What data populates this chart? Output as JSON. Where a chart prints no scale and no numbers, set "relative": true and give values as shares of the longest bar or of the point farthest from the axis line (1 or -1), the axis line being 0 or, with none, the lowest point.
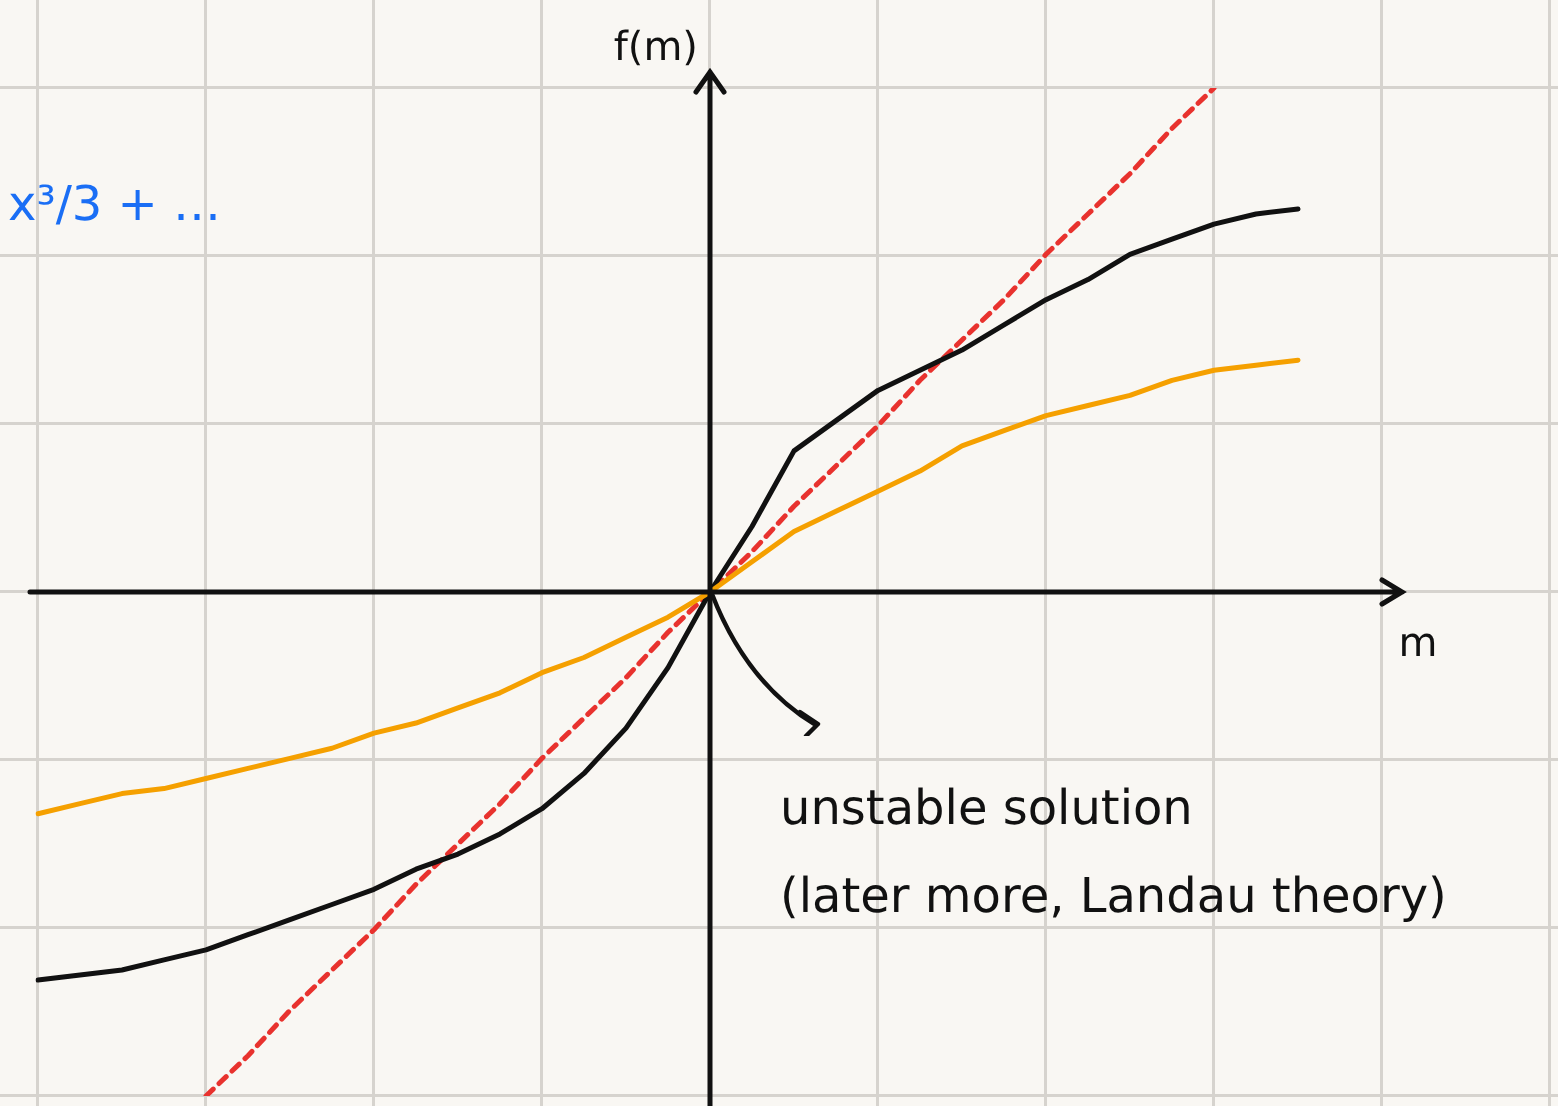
{
  "chart_data": {
    "type": "line",
    "relative": true,
    "xlabel": "m",
    "ylabel": "f(m)",
    "categories": [
      null,
      null,
      null,
      null,
      null,
      null,
      null,
      null,
      null,
      null,
      null,
      null,
      null,
      null,
      null,
      null,
      null,
      null,
      null,
      null,
      null,
      null,
      null,
      null,
      null,
      null,
      null,
      null,
      null,
      null,
      null,
      null,
      null
    ],
    "series": [
      {
        "color": "#f5a000",
        "values": [
          -0.44,
          -0.42,
          -0.4,
          -0.39,
          -0.37,
          -0.35,
          -0.33,
          -0.31,
          -0.28,
          -0.26,
          -0.23,
          -0.2,
          -0.16,
          -0.13,
          -0.09,
          -0.05,
          0,
          0.06,
          0.12,
          0.16,
          0.2,
          0.24,
          0.29,
          0.32,
          0.35,
          0.37,
          0.39,
          0.42,
          0.44,
          0.45,
          0.46,
          null,
          null
        ]
      },
      {
        "color": "#111111",
        "values": [
          -0.77,
          -0.76,
          -0.75,
          -0.73,
          -0.71,
          -0.68,
          -0.65,
          -0.62,
          -0.59,
          -0.55,
          -0.52,
          -0.48,
          -0.43,
          -0.36,
          -0.27,
          -0.15,
          0,
          0.13,
          0.28,
          0.34,
          0.4,
          0.44,
          0.48,
          0.53,
          0.58,
          0.62,
          0.67,
          0.7,
          0.73,
          0.75,
          0.76,
          null,
          null
        ]
      },
      {
        "color": "#e8322e",
        "line_style": "dashed",
        "values": [
          null,
          null,
          null,
          null,
          -1,
          -0.92,
          -0.83,
          -0.75,
          -0.67,
          -0.58,
          -0.5,
          -0.42,
          -0.33,
          -0.25,
          -0.17,
          -0.08,
          0,
          0.08,
          0.17,
          0.25,
          0.33,
          0.42,
          0.5,
          0.58,
          0.67,
          0.75,
          0.83,
          0.92,
          1,
          null,
          null,
          null,
          null
        ]
      }
    ],
    "annotations": [
      "x³/3 + …",
      {
        "text": "unstable solution\n(later more, Landau theory)"
      }
    ],
    "legend": false,
    "marker": "none"
  }
}
